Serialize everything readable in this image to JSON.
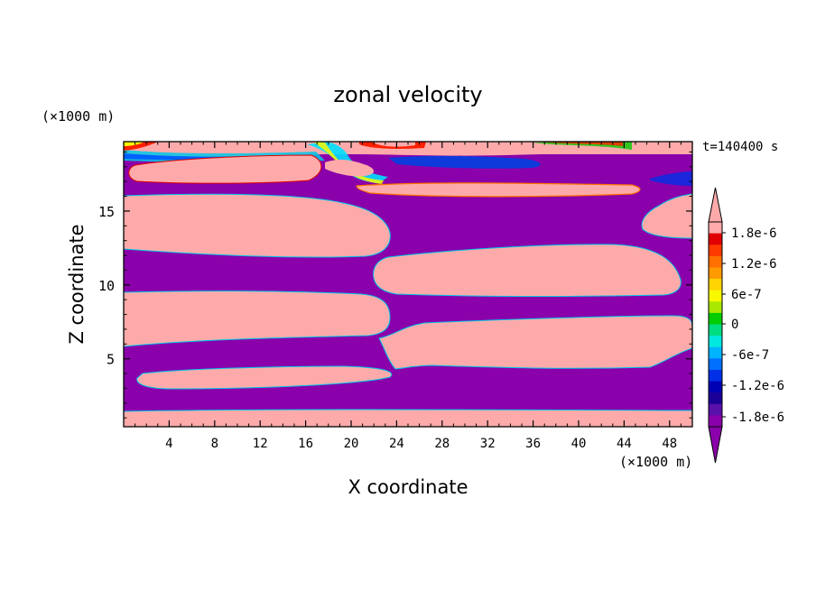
{
  "chart_data": {
    "type": "heatmap",
    "title": "zonal velocity",
    "xlabel": "X coordinate",
    "ylabel": "Z coordinate",
    "x_unit": "(×1000 m)",
    "y_unit": "(×1000 m)",
    "time_label": "t=140400 s",
    "xlim": [
      0,
      50
    ],
    "ylim": [
      0.4,
      19.7
    ],
    "x_ticks": [
      "4",
      "8",
      "12",
      "16",
      "20",
      "24",
      "28",
      "32",
      "36",
      "40",
      "44",
      "48"
    ],
    "y_ticks": [
      "5",
      "10",
      "15"
    ],
    "colorbar": {
      "ticks": [
        "1.8e-6",
        "1.2e-6",
        "6e-7",
        "0",
        "-6e-7",
        "-1.2e-6",
        "-1.8e-6"
      ],
      "levels": [
        "#ffaaaa",
        "#e00000",
        "#ff3a00",
        "#ff7000",
        "#ff9a00",
        "#ffd400",
        "#f8f800",
        "#a8e800",
        "#00cc00",
        "#00dc80",
        "#00e8e0",
        "#00b4ff",
        "#0070ff",
        "#0030e6",
        "#0000b4",
        "#1a0096",
        "#5a10aa",
        "#8a00aa"
      ]
    },
    "background_color": "#8a00aa",
    "positive_color": "#ffaaaa"
  }
}
